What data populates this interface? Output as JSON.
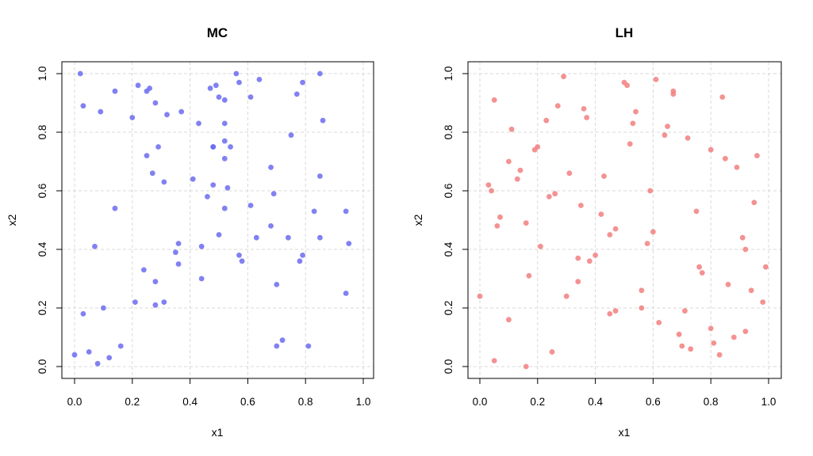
{
  "chart_data": [
    {
      "type": "scatter",
      "title": "MC",
      "xlabel": "x1",
      "ylabel": "x2",
      "xlim": [
        0,
        1
      ],
      "ylim": [
        0,
        1
      ],
      "x_ticks": [
        "0.0",
        "0.2",
        "0.4",
        "0.6",
        "0.8",
        "1.0"
      ],
      "y_ticks": [
        "0.0",
        "0.2",
        "0.4",
        "0.6",
        "0.8",
        "1.0"
      ],
      "grid": true,
      "color": "#6b6bf0",
      "points": [
        {
          "x": 0.02,
          "y": 1.0
        },
        {
          "x": 0.03,
          "y": 0.89
        },
        {
          "x": 0.09,
          "y": 0.87
        },
        {
          "x": 0.14,
          "y": 0.94
        },
        {
          "x": 0.2,
          "y": 0.85
        },
        {
          "x": 0.22,
          "y": 0.96
        },
        {
          "x": 0.25,
          "y": 0.94
        },
        {
          "x": 0.26,
          "y": 0.95
        },
        {
          "x": 0.28,
          "y": 0.9
        },
        {
          "x": 0.32,
          "y": 0.86
        },
        {
          "x": 0.37,
          "y": 0.87
        },
        {
          "x": 0.43,
          "y": 0.83
        },
        {
          "x": 0.47,
          "y": 0.95
        },
        {
          "x": 0.49,
          "y": 0.96
        },
        {
          "x": 0.5,
          "y": 0.92
        },
        {
          "x": 0.52,
          "y": 0.91
        },
        {
          "x": 0.56,
          "y": 1.0
        },
        {
          "x": 0.57,
          "y": 0.97
        },
        {
          "x": 0.61,
          "y": 0.92
        },
        {
          "x": 0.64,
          "y": 0.98
        },
        {
          "x": 0.77,
          "y": 0.93
        },
        {
          "x": 0.79,
          "y": 0.97
        },
        {
          "x": 0.85,
          "y": 1.0
        },
        {
          "x": 0.86,
          "y": 0.84
        },
        {
          "x": 0.48,
          "y": 0.75
        },
        {
          "x": 0.48,
          "y": 0.75
        },
        {
          "x": 0.52,
          "y": 0.77
        },
        {
          "x": 0.52,
          "y": 0.83
        },
        {
          "x": 0.54,
          "y": 0.75
        },
        {
          "x": 0.52,
          "y": 0.71
        },
        {
          "x": 0.25,
          "y": 0.72
        },
        {
          "x": 0.29,
          "y": 0.75
        },
        {
          "x": 0.27,
          "y": 0.66
        },
        {
          "x": 0.31,
          "y": 0.63
        },
        {
          "x": 0.41,
          "y": 0.64
        },
        {
          "x": 0.46,
          "y": 0.58
        },
        {
          "x": 0.48,
          "y": 0.62
        },
        {
          "x": 0.53,
          "y": 0.61
        },
        {
          "x": 0.52,
          "y": 0.54
        },
        {
          "x": 0.61,
          "y": 0.55
        },
        {
          "x": 0.68,
          "y": 0.68
        },
        {
          "x": 0.69,
          "y": 0.59
        },
        {
          "x": 0.75,
          "y": 0.79
        },
        {
          "x": 0.83,
          "y": 0.53
        },
        {
          "x": 0.85,
          "y": 0.65
        },
        {
          "x": 0.94,
          "y": 0.53
        },
        {
          "x": 0.14,
          "y": 0.54
        },
        {
          "x": 0.07,
          "y": 0.41
        },
        {
          "x": 0.36,
          "y": 0.42
        },
        {
          "x": 0.35,
          "y": 0.39
        },
        {
          "x": 0.36,
          "y": 0.35
        },
        {
          "x": 0.44,
          "y": 0.41
        },
        {
          "x": 0.5,
          "y": 0.45
        },
        {
          "x": 0.57,
          "y": 0.38
        },
        {
          "x": 0.58,
          "y": 0.36
        },
        {
          "x": 0.63,
          "y": 0.44
        },
        {
          "x": 0.68,
          "y": 0.48
        },
        {
          "x": 0.74,
          "y": 0.44
        },
        {
          "x": 0.78,
          "y": 0.36
        },
        {
          "x": 0.79,
          "y": 0.38
        },
        {
          "x": 0.85,
          "y": 0.44
        },
        {
          "x": 0.95,
          "y": 0.42
        },
        {
          "x": 0.24,
          "y": 0.33
        },
        {
          "x": 0.28,
          "y": 0.29
        },
        {
          "x": 0.44,
          "y": 0.3
        },
        {
          "x": 0.7,
          "y": 0.28
        },
        {
          "x": 0.94,
          "y": 0.25
        },
        {
          "x": 0.21,
          "y": 0.22
        },
        {
          "x": 0.28,
          "y": 0.21
        },
        {
          "x": 0.31,
          "y": 0.22
        },
        {
          "x": 0.03,
          "y": 0.18
        },
        {
          "x": 0.1,
          "y": 0.2
        },
        {
          "x": 0.16,
          "y": 0.07
        },
        {
          "x": 0.05,
          "y": 0.05
        },
        {
          "x": 0.0,
          "y": 0.04
        },
        {
          "x": 0.08,
          "y": 0.01
        },
        {
          "x": 0.12,
          "y": 0.03
        },
        {
          "x": 0.7,
          "y": 0.07
        },
        {
          "x": 0.72,
          "y": 0.09
        },
        {
          "x": 0.81,
          "y": 0.07
        }
      ]
    },
    {
      "type": "scatter",
      "title": "LH",
      "xlabel": "x1",
      "ylabel": "x2",
      "xlim": [
        0,
        1
      ],
      "ylim": [
        0,
        1
      ],
      "x_ticks": [
        "0.0",
        "0.2",
        "0.4",
        "0.6",
        "0.8",
        "1.0"
      ],
      "y_ticks": [
        "0.0",
        "0.2",
        "0.4",
        "0.6",
        "0.8",
        "1.0"
      ],
      "grid": true,
      "color": "#f27f7f",
      "points": [
        {
          "x": 0.29,
          "y": 0.99
        },
        {
          "x": 0.5,
          "y": 0.97
        },
        {
          "x": 0.51,
          "y": 0.96
        },
        {
          "x": 0.61,
          "y": 0.98
        },
        {
          "x": 0.67,
          "y": 0.94
        },
        {
          "x": 0.67,
          "y": 0.93
        },
        {
          "x": 0.84,
          "y": 0.92
        },
        {
          "x": 0.05,
          "y": 0.91
        },
        {
          "x": 0.27,
          "y": 0.89
        },
        {
          "x": 0.36,
          "y": 0.88
        },
        {
          "x": 0.37,
          "y": 0.85
        },
        {
          "x": 0.54,
          "y": 0.87
        },
        {
          "x": 0.23,
          "y": 0.84
        },
        {
          "x": 0.53,
          "y": 0.83
        },
        {
          "x": 0.65,
          "y": 0.82
        },
        {
          "x": 0.64,
          "y": 0.79
        },
        {
          "x": 0.72,
          "y": 0.78
        },
        {
          "x": 0.11,
          "y": 0.81
        },
        {
          "x": 0.52,
          "y": 0.76
        },
        {
          "x": 0.2,
          "y": 0.75
        },
        {
          "x": 0.19,
          "y": 0.74
        },
        {
          "x": 0.8,
          "y": 0.74
        },
        {
          "x": 0.85,
          "y": 0.71
        },
        {
          "x": 0.96,
          "y": 0.72
        },
        {
          "x": 0.89,
          "y": 0.68
        },
        {
          "x": 0.1,
          "y": 0.7
        },
        {
          "x": 0.14,
          "y": 0.67
        },
        {
          "x": 0.13,
          "y": 0.64
        },
        {
          "x": 0.31,
          "y": 0.66
        },
        {
          "x": 0.43,
          "y": 0.65
        },
        {
          "x": 0.03,
          "y": 0.62
        },
        {
          "x": 0.04,
          "y": 0.6
        },
        {
          "x": 0.26,
          "y": 0.59
        },
        {
          "x": 0.24,
          "y": 0.58
        },
        {
          "x": 0.59,
          "y": 0.6
        },
        {
          "x": 0.35,
          "y": 0.55
        },
        {
          "x": 0.75,
          "y": 0.53
        },
        {
          "x": 0.95,
          "y": 0.56
        },
        {
          "x": 0.07,
          "y": 0.51
        },
        {
          "x": 0.42,
          "y": 0.52
        },
        {
          "x": 0.06,
          "y": 0.48
        },
        {
          "x": 0.16,
          "y": 0.49
        },
        {
          "x": 0.47,
          "y": 0.47
        },
        {
          "x": 0.45,
          "y": 0.45
        },
        {
          "x": 0.6,
          "y": 0.46
        },
        {
          "x": 0.58,
          "y": 0.42
        },
        {
          "x": 0.91,
          "y": 0.44
        },
        {
          "x": 0.92,
          "y": 0.4
        },
        {
          "x": 0.21,
          "y": 0.41
        },
        {
          "x": 0.4,
          "y": 0.38
        },
        {
          "x": 0.38,
          "y": 0.36
        },
        {
          "x": 0.34,
          "y": 0.37
        },
        {
          "x": 0.76,
          "y": 0.34
        },
        {
          "x": 0.77,
          "y": 0.32
        },
        {
          "x": 0.99,
          "y": 0.34
        },
        {
          "x": 0.17,
          "y": 0.31
        },
        {
          "x": 0.34,
          "y": 0.29
        },
        {
          "x": 0.86,
          "y": 0.28
        },
        {
          "x": 0.56,
          "y": 0.26
        },
        {
          "x": 0.94,
          "y": 0.26
        },
        {
          "x": 0.0,
          "y": 0.24
        },
        {
          "x": 0.3,
          "y": 0.24
        },
        {
          "x": 0.98,
          "y": 0.22
        },
        {
          "x": 0.56,
          "y": 0.2
        },
        {
          "x": 0.47,
          "y": 0.19
        },
        {
          "x": 0.45,
          "y": 0.18
        },
        {
          "x": 0.71,
          "y": 0.19
        },
        {
          "x": 0.1,
          "y": 0.16
        },
        {
          "x": 0.62,
          "y": 0.15
        },
        {
          "x": 0.8,
          "y": 0.13
        },
        {
          "x": 0.92,
          "y": 0.12
        },
        {
          "x": 0.69,
          "y": 0.11
        },
        {
          "x": 0.88,
          "y": 0.1
        },
        {
          "x": 0.81,
          "y": 0.08
        },
        {
          "x": 0.7,
          "y": 0.07
        },
        {
          "x": 0.73,
          "y": 0.06
        },
        {
          "x": 0.83,
          "y": 0.04
        },
        {
          "x": 0.25,
          "y": 0.05
        },
        {
          "x": 0.05,
          "y": 0.02
        },
        {
          "x": 0.16,
          "y": 0.0
        }
      ]
    }
  ]
}
